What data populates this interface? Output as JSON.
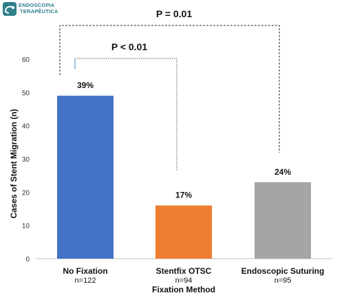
{
  "logo": {
    "line1": "ENDOSCOPIA",
    "line2": "TERAPÊUTICA",
    "icon": "endoscope-logo-icon",
    "color": "#2e7f8a"
  },
  "chart_data": {
    "type": "bar",
    "title": "",
    "xlabel": "Fixation Method",
    "ylabel": "Cases of Stent Migration (n)",
    "ylim": [
      0,
      60
    ],
    "yticks": [
      0,
      10,
      20,
      30,
      40,
      50,
      60
    ],
    "grid": false,
    "legend": "none",
    "categories": [
      "No Fixation",
      "Stentfix OTSC",
      "Endoscopic Suturing"
    ],
    "sample_sizes": [
      "n=122",
      "n=94",
      "n=95"
    ],
    "values": [
      49,
      16,
      23
    ],
    "data_labels": [
      "39%",
      "17%",
      "24%"
    ],
    "colors": [
      "#4472c4",
      "#ed7d31",
      "#a5a5a5"
    ],
    "annotations": [
      {
        "text": "P = 0.01",
        "from": "No Fixation",
        "to": "Endoscopic Suturing",
        "style": "dashed-bracket",
        "bracket_y": 62
      },
      {
        "text": "P < 0.01",
        "from": "No Fixation",
        "to": "Stentfix OTSC",
        "style": "dotted-bracket",
        "bracket_y": 52
      }
    ]
  }
}
